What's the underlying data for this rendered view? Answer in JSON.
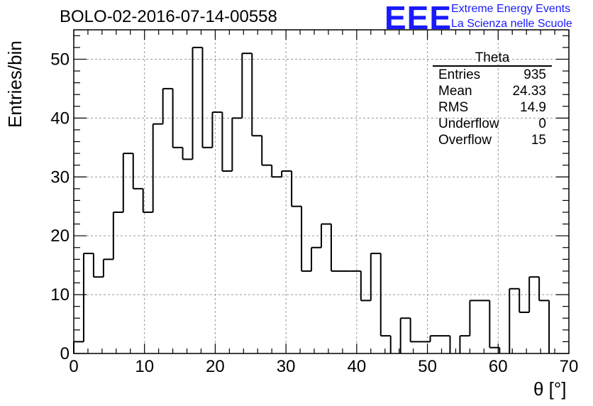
{
  "header": {
    "title": "BOLO-02-2016-07-14-00558",
    "logo_text": "EEE",
    "logo_line1": "Extreme Energy Events",
    "logo_line2": "La Scienza nelle Scuole"
  },
  "stats": {
    "title": "Theta",
    "rows": [
      {
        "label": "Entries",
        "value": "935"
      },
      {
        "label": "Mean",
        "value": "24.33"
      },
      {
        "label": "RMS",
        "value": "14.9"
      },
      {
        "label": "Underflow",
        "value": "0"
      },
      {
        "label": "Overflow",
        "value": "15"
      }
    ]
  },
  "chart_data": {
    "type": "bar",
    "style": "step-histogram",
    "title": "BOLO-02-2016-07-14-00558",
    "xlabel": "θ [°]",
    "ylabel": "Entries/bin",
    "bin_width": 1.4,
    "bin_edges_start": 0,
    "values": [
      2,
      17,
      13,
      16,
      24,
      34,
      28,
      24,
      39,
      45,
      35,
      33,
      52,
      35,
      41,
      31,
      40,
      51,
      37,
      32,
      30,
      31,
      25,
      14,
      18,
      22,
      14,
      14,
      14,
      9,
      17,
      3,
      0,
      6,
      2,
      2,
      3,
      3,
      0,
      3,
      9,
      9,
      1,
      0,
      11,
      7,
      13,
      9
    ],
    "xlim": [
      0,
      70
    ],
    "ylim": [
      0,
      55
    ],
    "xticks": [
      0,
      10,
      20,
      30,
      40,
      50,
      60,
      70
    ],
    "yticks": [
      0,
      10,
      20,
      30,
      40,
      50
    ],
    "grid": true,
    "line_color": "#000000",
    "logo_color": "#1a1aff"
  }
}
